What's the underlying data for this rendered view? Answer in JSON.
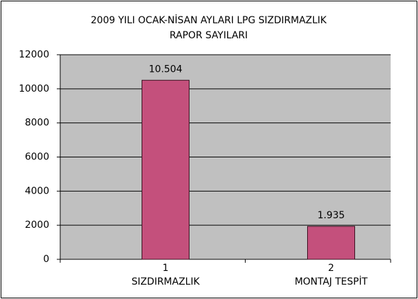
{
  "chart_data": {
    "type": "bar",
    "title": [
      "2009 YILI OCAK-NİSAN AYLARI LPG SIZDIRMAZLIK",
      "RAPOR SAYILARI"
    ],
    "categories": [
      [
        "1",
        "SIZDIRMAZLIK"
      ],
      [
        "2",
        "MONTAJ TESPİT"
      ]
    ],
    "values": [
      10504,
      1935
    ],
    "value_labels": [
      "10.504",
      "1.935"
    ],
    "color": "#c4507c",
    "ylim": [
      0,
      12000
    ],
    "yticks": [
      0,
      2000,
      4000,
      6000,
      8000,
      10000,
      12000
    ],
    "grid": true
  }
}
